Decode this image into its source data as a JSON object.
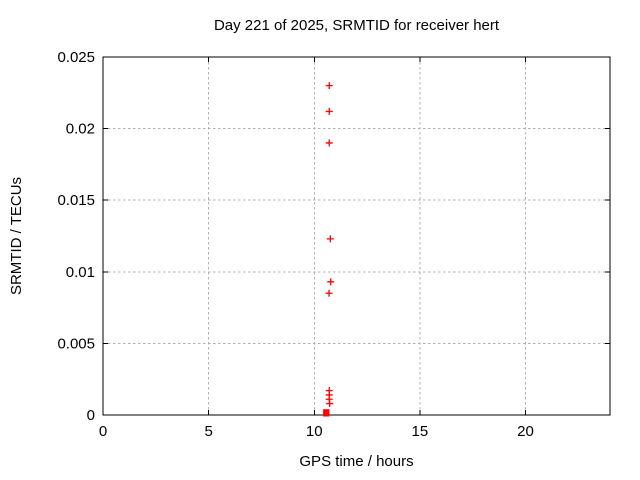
{
  "window": {
    "background": "#ffffff"
  },
  "chart_data": {
    "type": "scatter",
    "title": "Day 221 of 2025, SRMTID for receiver hert",
    "xlabel": "GPS time / hours",
    "ylabel": "SRMTID / TECUs",
    "xlim": [
      0,
      24
    ],
    "ylim": [
      0,
      0.025
    ],
    "x_ticks": [
      0,
      5,
      10,
      15,
      20
    ],
    "x_tick_labels": [
      "0",
      "5",
      "10",
      "15",
      "20"
    ],
    "y_ticks": [
      0,
      0.005,
      0.01,
      0.015,
      0.02,
      0.025
    ],
    "y_tick_labels": [
      "0",
      "0.005",
      "0.01",
      "0.015",
      "0.02",
      "0.025"
    ],
    "grid": "dashed",
    "grid_color": "#b0b0b0",
    "border_color": "#000000",
    "legend": "none",
    "marker": "plus",
    "marker_color": "#ff0000",
    "series": [
      {
        "name": "SRMTID",
        "points": [
          {
            "x": 10.71,
            "y": 0.023
          },
          {
            "x": 10.71,
            "y": 0.0212
          },
          {
            "x": 10.71,
            "y": 0.019
          },
          {
            "x": 10.76,
            "y": 0.0123
          },
          {
            "x": 10.78,
            "y": 0.0093
          },
          {
            "x": 10.7,
            "y": 0.0085
          },
          {
            "x": 10.71,
            "y": 0.0017
          },
          {
            "x": 10.71,
            "y": 0.0014
          },
          {
            "x": 10.71,
            "y": 0.0011
          },
          {
            "x": 10.73,
            "y": 0.0008
          }
        ]
      }
    ],
    "near_zero_cluster": {
      "description": "dense block of overlapping markers at the x-axis",
      "x_range": [
        10.42,
        10.72
      ],
      "y_range": [
        0,
        0.0003
      ]
    }
  }
}
